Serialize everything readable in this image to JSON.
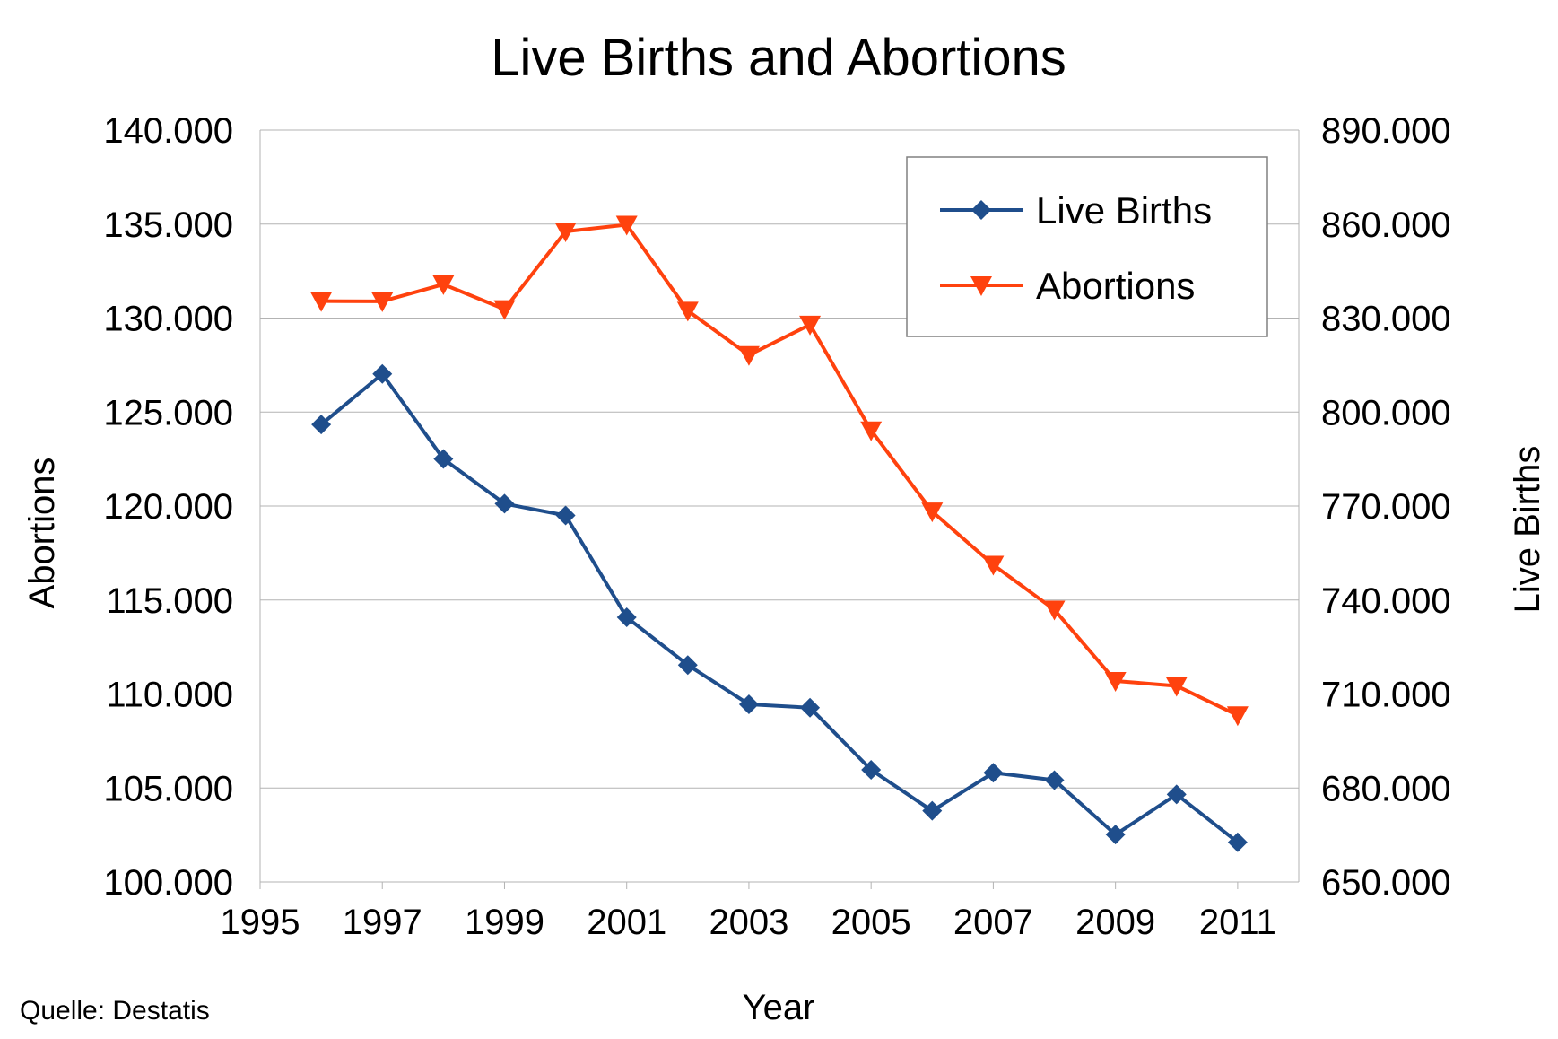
{
  "chart_data": {
    "type": "line",
    "title": "Live Births and Abortions",
    "xlabel": "Year",
    "ylabel_left": "Abortions",
    "ylabel_right": "Live Births",
    "x": [
      1996,
      1997,
      1998,
      1999,
      2000,
      2001,
      2002,
      2003,
      2004,
      2005,
      2006,
      2007,
      2008,
      2009,
      2010,
      2011
    ],
    "xlim": [
      1995,
      2012
    ],
    "xticks": [
      1995,
      1997,
      1999,
      2001,
      2003,
      2005,
      2007,
      2009,
      2011
    ],
    "xtick_labels": [
      "1995",
      "1997",
      "1999",
      "2001",
      "2003",
      "2005",
      "2007",
      "2009",
      "2011"
    ],
    "ylim_left": [
      100000,
      140000
    ],
    "yticks_left": [
      "100.000",
      "105.000",
      "110.000",
      "115.000",
      "120.000",
      "125.000",
      "130.000",
      "135.000",
      "140.000"
    ],
    "ylim_right": [
      650000,
      890000
    ],
    "yticks_right": [
      "650.000",
      "680.000",
      "710.000",
      "740.000",
      "770.000",
      "800.000",
      "830.000",
      "860.000",
      "890.000"
    ],
    "grid": true,
    "legend_position": "top-right",
    "series": [
      {
        "name": "Live Births",
        "axis": "right",
        "color": "#1f4e8c",
        "marker": "diamond",
        "values": [
          796013,
          812173,
          785034,
          770744,
          766999,
          734475,
          719250,
          706721,
          705622,
          685795,
          672724,
          684862,
          682514,
          665126,
          677947,
          662685
        ]
      },
      {
        "name": "Abortions",
        "axis": "left",
        "color": "#ff420e",
        "marker": "triangle-down",
        "values": [
          130899,
          130890,
          131795,
          130471,
          134609,
          134964,
          130387,
          128030,
          129650,
          124023,
          119710,
          116871,
          114484,
          110694,
          110431,
          108867
        ]
      }
    ]
  },
  "source": "Quelle: Destatis"
}
